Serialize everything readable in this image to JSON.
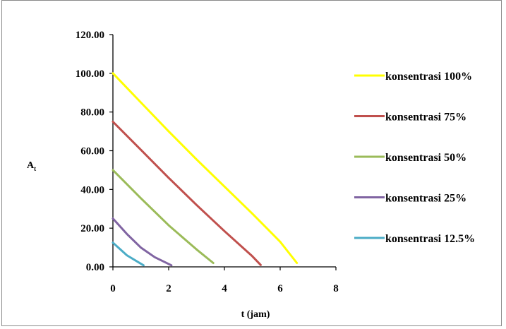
{
  "chart_data": {
    "type": "line",
    "xlabel": "t (jam)",
    "ylabel": "A",
    "ylabel_sub": "t",
    "xlim": [
      0,
      8
    ],
    "ylim": [
      0,
      120
    ],
    "x_ticks": [
      "0",
      "2",
      "4",
      "6",
      "8"
    ],
    "y_ticks": [
      "0.00",
      "20.00",
      "40.00",
      "60.00",
      "80.00",
      "100.00",
      "120.00"
    ],
    "grid": false,
    "legend_position": "right",
    "series": [
      {
        "name": "konsentrasi 100%",
        "color": "#ffff00",
        "x": [
          0,
          1,
          2,
          3,
          4,
          5,
          6,
          6.6
        ],
        "y": [
          100,
          85,
          70,
          55.5,
          41.5,
          27.5,
          13,
          2
        ]
      },
      {
        "name": "konsentrasi 75%",
        "color": "#c0504d",
        "x": [
          0,
          1,
          2,
          3,
          4,
          5,
          5.3
        ],
        "y": [
          75,
          60.5,
          46,
          32,
          18.5,
          5.5,
          1
        ]
      },
      {
        "name": "konsentrasi 50%",
        "color": "#9bbb59",
        "x": [
          0,
          1,
          2,
          3,
          3.6
        ],
        "y": [
          50,
          35.5,
          21.5,
          9,
          2
        ]
      },
      {
        "name": "konsentrasi 25%",
        "color": "#8064a2",
        "x": [
          0,
          0.5,
          1,
          1.5,
          2.1
        ],
        "y": [
          25,
          17,
          10,
          5,
          0.8
        ]
      },
      {
        "name": "konsentrasi 12.5%",
        "color": "#4bacc6",
        "x": [
          0,
          0.5,
          1.1
        ],
        "y": [
          12.5,
          6,
          0.8
        ]
      }
    ]
  }
}
